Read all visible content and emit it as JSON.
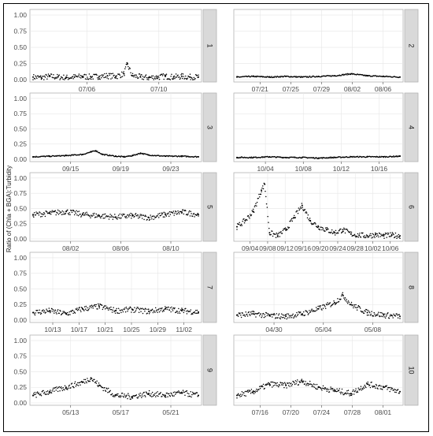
{
  "chart_data": {
    "type": "scatter",
    "ylabel": "Ratio of (Chla + BGA):Turbidity",
    "ylim": [
      0,
      1.0
    ],
    "y_ticks": [
      "0.00",
      "0.25",
      "0.50",
      "0.75",
      "1.00"
    ],
    "grid": true,
    "panels": [
      {
        "strip": "1",
        "x_ticks": [
          "07/06",
          "07/10"
        ],
        "series_points": [
          [
            0.0,
            0.04
          ],
          [
            0.05,
            0.03
          ],
          [
            0.1,
            0.05
          ],
          [
            0.15,
            0.04
          ],
          [
            0.2,
            0.03
          ],
          [
            0.25,
            0.04
          ],
          [
            0.3,
            0.05
          ],
          [
            0.35,
            0.04
          ],
          [
            0.4,
            0.05
          ],
          [
            0.45,
            0.06
          ],
          [
            0.5,
            0.05
          ],
          [
            0.55,
            0.09
          ],
          [
            0.57,
            0.24
          ],
          [
            0.6,
            0.06
          ],
          [
            0.65,
            0.04
          ],
          [
            0.7,
            0.03
          ],
          [
            0.75,
            0.04
          ],
          [
            0.8,
            0.05
          ],
          [
            0.85,
            0.04
          ],
          [
            0.9,
            0.05
          ],
          [
            0.95,
            0.04
          ],
          [
            1.0,
            0.04
          ]
        ]
      },
      {
        "strip": "2",
        "x_ticks": [
          "07/21",
          "07/25",
          "07/29",
          "08/02",
          "08/06"
        ],
        "series_points": [
          [
            0.0,
            0.04
          ],
          [
            0.1,
            0.05
          ],
          [
            0.2,
            0.04
          ],
          [
            0.3,
            0.05
          ],
          [
            0.4,
            0.04
          ],
          [
            0.5,
            0.05
          ],
          [
            0.6,
            0.06
          ],
          [
            0.7,
            0.09
          ],
          [
            0.8,
            0.06
          ],
          [
            0.9,
            0.05
          ],
          [
            1.0,
            0.04
          ]
        ]
      },
      {
        "strip": "3",
        "x_ticks": [
          "09/15",
          "09/19",
          "09/23"
        ],
        "series_points": [
          [
            0.0,
            0.04
          ],
          [
            0.1,
            0.05
          ],
          [
            0.2,
            0.06
          ],
          [
            0.3,
            0.08
          ],
          [
            0.35,
            0.12
          ],
          [
            0.38,
            0.14
          ],
          [
            0.42,
            0.08
          ],
          [
            0.5,
            0.05
          ],
          [
            0.55,
            0.04
          ],
          [
            0.6,
            0.06
          ],
          [
            0.65,
            0.1
          ],
          [
            0.7,
            0.07
          ],
          [
            0.8,
            0.05
          ],
          [
            0.9,
            0.05
          ],
          [
            1.0,
            0.04
          ]
        ]
      },
      {
        "strip": "4",
        "x_ticks": [
          "10/04",
          "10/08",
          "10/12",
          "10/16"
        ],
        "series_points": [
          [
            0.0,
            0.03
          ],
          [
            0.1,
            0.03
          ],
          [
            0.2,
            0.04
          ],
          [
            0.3,
            0.03
          ],
          [
            0.4,
            0.03
          ],
          [
            0.5,
            0.02
          ],
          [
            0.6,
            0.03
          ],
          [
            0.7,
            0.04
          ],
          [
            0.8,
            0.04
          ],
          [
            0.9,
            0.04
          ],
          [
            1.0,
            0.05
          ]
        ]
      },
      {
        "strip": "5",
        "x_ticks": [
          "08/02",
          "08/06",
          "08/10"
        ],
        "series_points": [
          [
            0.0,
            0.4
          ],
          [
            0.1,
            0.42
          ],
          [
            0.2,
            0.45
          ],
          [
            0.3,
            0.4
          ],
          [
            0.4,
            0.38
          ],
          [
            0.5,
            0.36
          ],
          [
            0.6,
            0.38
          ],
          [
            0.7,
            0.35
          ],
          [
            0.8,
            0.4
          ],
          [
            0.9,
            0.44
          ],
          [
            1.0,
            0.4
          ]
        ]
      },
      {
        "strip": "6",
        "x_ticks": [
          "09/04",
          "09/08",
          "09/12",
          "09/16",
          "09/20",
          "09/24",
          "09/28",
          "10/02",
          "10/06"
        ],
        "series_points": [
          [
            0.0,
            0.2
          ],
          [
            0.05,
            0.3
          ],
          [
            0.1,
            0.45
          ],
          [
            0.15,
            0.8
          ],
          [
            0.17,
            0.9
          ],
          [
            0.2,
            0.1
          ],
          [
            0.25,
            0.05
          ],
          [
            0.3,
            0.15
          ],
          [
            0.35,
            0.35
          ],
          [
            0.4,
            0.55
          ],
          [
            0.45,
            0.3
          ],
          [
            0.5,
            0.2
          ],
          [
            0.55,
            0.15
          ],
          [
            0.6,
            0.1
          ],
          [
            0.65,
            0.15
          ],
          [
            0.7,
            0.08
          ],
          [
            0.75,
            0.06
          ],
          [
            0.8,
            0.05
          ],
          [
            0.85,
            0.07
          ],
          [
            0.9,
            0.05
          ],
          [
            0.95,
            0.06
          ],
          [
            1.0,
            0.05
          ]
        ]
      },
      {
        "strip": "7",
        "x_ticks": [
          "10/13",
          "10/17",
          "10/21",
          "10/25",
          "10/29",
          "11/02"
        ],
        "series_points": [
          [
            0.0,
            0.12
          ],
          [
            0.1,
            0.15
          ],
          [
            0.2,
            0.1
          ],
          [
            0.3,
            0.18
          ],
          [
            0.4,
            0.22
          ],
          [
            0.5,
            0.15
          ],
          [
            0.6,
            0.17
          ],
          [
            0.7,
            0.14
          ],
          [
            0.8,
            0.18
          ],
          [
            0.9,
            0.15
          ],
          [
            1.0,
            0.13
          ]
        ]
      },
      {
        "strip": "8",
        "x_ticks": [
          "04/30",
          "05/04",
          "05/08"
        ],
        "series_points": [
          [
            0.0,
            0.08
          ],
          [
            0.1,
            0.1
          ],
          [
            0.2,
            0.07
          ],
          [
            0.3,
            0.06
          ],
          [
            0.4,
            0.1
          ],
          [
            0.5,
            0.18
          ],
          [
            0.6,
            0.28
          ],
          [
            0.65,
            0.4
          ],
          [
            0.7,
            0.25
          ],
          [
            0.8,
            0.12
          ],
          [
            0.9,
            0.08
          ],
          [
            1.0,
            0.06
          ]
        ]
      },
      {
        "strip": "9",
        "x_ticks": [
          "05/13",
          "05/17",
          "05/21"
        ],
        "series_points": [
          [
            0.0,
            0.12
          ],
          [
            0.1,
            0.18
          ],
          [
            0.2,
            0.25
          ],
          [
            0.3,
            0.33
          ],
          [
            0.35,
            0.4
          ],
          [
            0.4,
            0.28
          ],
          [
            0.5,
            0.12
          ],
          [
            0.6,
            0.1
          ],
          [
            0.7,
            0.15
          ],
          [
            0.8,
            0.12
          ],
          [
            0.9,
            0.16
          ],
          [
            1.0,
            0.12
          ]
        ]
      },
      {
        "strip": "10",
        "x_ticks": [
          "07/16",
          "07/20",
          "07/24",
          "07/28",
          "08/01"
        ],
        "series_points": [
          [
            0.0,
            0.12
          ],
          [
            0.1,
            0.18
          ],
          [
            0.2,
            0.3
          ],
          [
            0.3,
            0.28
          ],
          [
            0.4,
            0.35
          ],
          [
            0.5,
            0.25
          ],
          [
            0.6,
            0.2
          ],
          [
            0.7,
            0.15
          ],
          [
            0.8,
            0.3
          ],
          [
            0.9,
            0.25
          ],
          [
            1.0,
            0.18
          ]
        ]
      }
    ]
  }
}
